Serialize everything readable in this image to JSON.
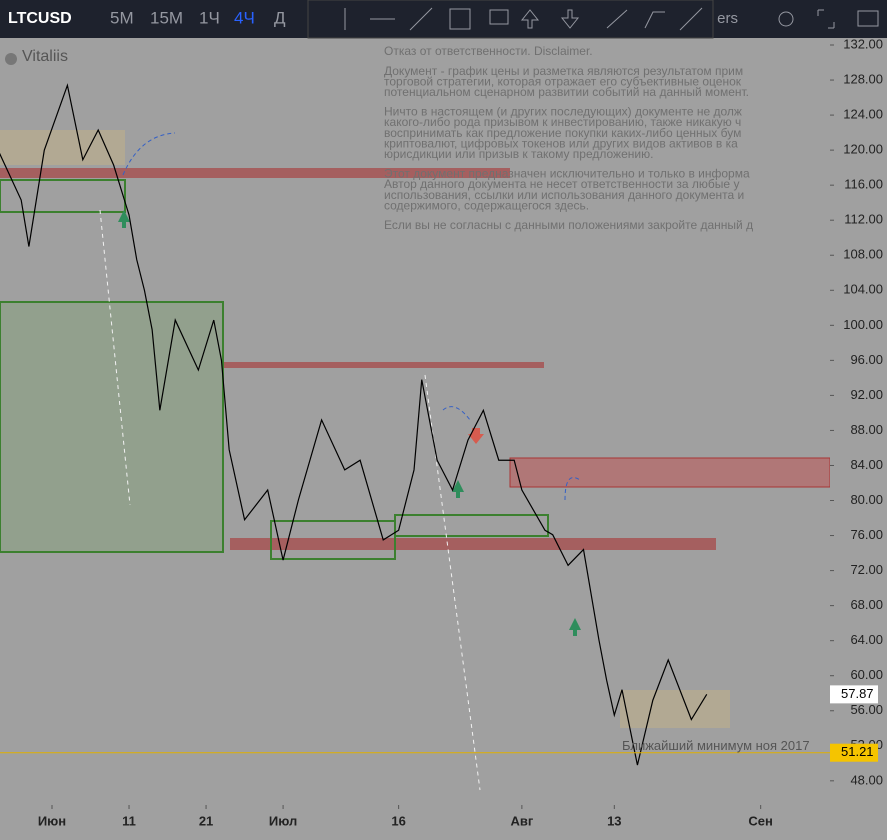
{
  "toolbar": {
    "symbol": "LTCUSD",
    "intervals": [
      "5М",
      "15М",
      "1Ч",
      "4Ч",
      "Д"
    ],
    "indicators": "ers"
  },
  "user": "Vitaliis",
  "disclaimer": [
    "Отказ от ответственности. Disclaimer.",
    "Документ - график цены и разметка являются результатом прим",
    "торговой стратегии, которая отражает его субъективные оценок",
    "потенциальном сценарном развитии событий на данный момент.",
    "Ничто в настоящем (и других последующих) документе не долж",
    "какого-либо рода призывом к инвестированию, также никакую ч",
    "воспринимать как предложение покупки каких-либо ценных бум",
    "криптовалют, цифровых токенов или других видов активов в ка",
    "юрисдикции или призыв к такому предложению.",
    "Этот документ предназначен исключительно и только в информа",
    "Автор данного документа не несет ответственности за любые у",
    "использования, ссылки или использования данного документа и",
    "содержимого, содержащегося здесь.",
    "Если вы не согласны с данными положениями закройте данный д"
  ],
  "chart_data": {
    "type": "line",
    "x": [
      -7,
      -4,
      -3,
      -1,
      2,
      4,
      6,
      8,
      10,
      11,
      12,
      13,
      14,
      16,
      19,
      21,
      22,
      23,
      25,
      28,
      30,
      32,
      35,
      38,
      40,
      43,
      45,
      47,
      48,
      50,
      52,
      54,
      56,
      58,
      60,
      61,
      64,
      65,
      67,
      69,
      71,
      72,
      73,
      74,
      76,
      78,
      80,
      83,
      85
    ],
    "series": [
      {
        "name": "LTCUSD",
        "color": "#000000",
        "values": [
          120,
          114.3,
          109,
          120,
          127.4,
          118.9,
          122.3,
          118.3,
          112.6,
          107.5,
          104,
          99.5,
          90.3,
          100.6,
          94.9,
          100.6,
          96,
          85.8,
          77.8,
          81.2,
          73.2,
          80.1,
          89.2,
          83.5,
          84.6,
          75.5,
          76.6,
          83.5,
          93.8,
          84.6,
          81.2,
          86.9,
          90.3,
          84.6,
          84.6,
          81.2,
          76.6,
          76.1,
          72.6,
          74.4,
          64.1,
          59.5,
          55.5,
          58.4,
          49.8,
          57.2,
          61.8,
          55,
          57.87
        ]
      }
    ],
    "xlim": [
      -6.75,
      101
    ],
    "xticks": [
      {
        "value": 0,
        "label": "Июн"
      },
      {
        "value": 10,
        "label": "11"
      },
      {
        "value": 20,
        "label": "21"
      },
      {
        "value": 30,
        "label": "Июл"
      },
      {
        "value": 45,
        "label": "16"
      },
      {
        "value": 61,
        "label": "Авг"
      },
      {
        "value": 73,
        "label": "13"
      },
      {
        "value": 92,
        "label": "Сен"
      }
    ],
    "ylim": [
      45.24,
      132.8
    ],
    "yticks": [
      {
        "value": 48,
        "label": "48.00"
      },
      {
        "value": 52,
        "label": "52.00"
      },
      {
        "value": 56,
        "label": "56.00"
      },
      {
        "value": 60,
        "label": "60.00"
      },
      {
        "value": 64,
        "label": "64.00"
      },
      {
        "value": 68,
        "label": "68.00"
      },
      {
        "value": 72,
        "label": "72.00"
      },
      {
        "value": 76,
        "label": "76.00"
      },
      {
        "value": 80,
        "label": "80.00"
      },
      {
        "value": 84,
        "label": "84.00"
      },
      {
        "value": 88,
        "label": "88.00"
      },
      {
        "value": 92,
        "label": "92.00"
      },
      {
        "value": 96,
        "label": "96.00"
      },
      {
        "value": 100,
        "label": "100.00"
      },
      {
        "value": 104,
        "label": "104.00"
      },
      {
        "value": 108,
        "label": "108.00"
      },
      {
        "value": 112,
        "label": "112.00"
      },
      {
        "value": 116,
        "label": "116.00"
      },
      {
        "value": 120,
        "label": "120.00"
      },
      {
        "value": 124,
        "label": "124.00"
      },
      {
        "value": 128,
        "label": "128.00"
      },
      {
        "value": 132,
        "label": "132.00"
      }
    ],
    "last_price": 57.87,
    "level": 51.21,
    "annotation": "Ближайший минимум ноя 2017"
  }
}
